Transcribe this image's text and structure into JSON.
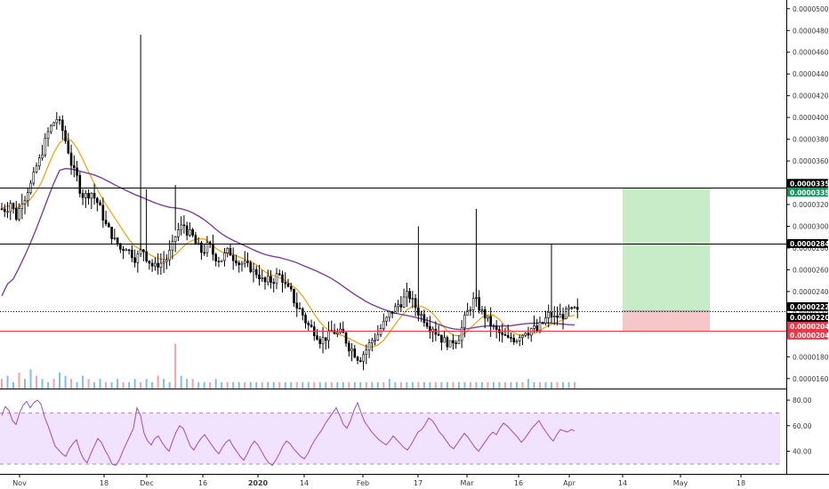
{
  "chart_data": {
    "type": "candlestick",
    "price_axis": {
      "ylim": [
        1.5e-05,
        5.08e-05
      ],
      "ticks": [
        "0.00001600",
        "0.00001800",
        "0.00002000",
        "0.00002200",
        "0.00002400",
        "0.00002600",
        "0.00002800",
        "0.00003000",
        "0.00003200",
        "0.00003400",
        "0.00003600",
        "0.00003800",
        "0.00004000",
        "0.00004200",
        "0.00004400",
        "0.00004600",
        "0.00004800",
        "0.00005000"
      ]
    },
    "time_axis": {
      "labels": [
        "Nov",
        "18",
        "Dec",
        "16",
        "2020",
        "14",
        "Feb",
        "17",
        "Mar",
        "16",
        "Apr",
        "14",
        "May",
        "18"
      ],
      "bold": [
        "2020"
      ]
    },
    "horizontal_levels": [
      {
        "value": 3.353e-05,
        "label": "0.00003353",
        "color": "#000000"
      },
      {
        "value": 2.841e-05,
        "label": "0.00002841",
        "color": "#000000"
      },
      {
        "value": 2.22e-05,
        "label": "0.00002220",
        "color": "#000000"
      },
      {
        "value": 2.04e-05,
        "label": "0.00002040",
        "color": "#f23645"
      }
    ],
    "price_tags": [
      {
        "label": "0.00003353",
        "value": 3.353e-05,
        "bg": "#000000"
      },
      {
        "label": "0.00003353",
        "value": 3.353e-05,
        "bg": "#089a5a"
      },
      {
        "label": "0.00002841",
        "value": 2.841e-05,
        "bg": "#000000"
      },
      {
        "label": "0.00002220",
        "value": 2.22e-05,
        "bg": "#000000"
      },
      {
        "label": "0.00002203",
        "value": 2.203e-05,
        "bg": "#000000"
      },
      {
        "label": "02:04:35",
        "value": 2.11e-05,
        "bg": "#000000"
      },
      {
        "label": "0.00002040",
        "value": 2.04e-05,
        "bg": "#f23645"
      },
      {
        "label": "0.00002040",
        "value": 2.04e-05,
        "bg": "#f23645"
      }
    ],
    "position_tool": {
      "entry": 2.22e-05,
      "target": 3.353e-05,
      "stop": 2.04e-05,
      "profit_color": "#c8ecc8",
      "loss_color": "#f7c6c9"
    },
    "close_series": [
      3.16e-05,
      3.22e-05,
      3.09e-05,
      3.25e-05,
      3.34e-05,
      3.45e-05,
      3.6e-05,
      3.77e-05,
      3.91e-05,
      3.99e-05,
      3.88e-05,
      3.7e-05,
      3.49e-05,
      3.35e-05,
      3.28e-05,
      3.31e-05,
      3.22e-05,
      3.09e-05,
      2.96e-05,
      2.86e-05,
      2.79e-05,
      2.82e-05,
      2.75e-05,
      2.72e-05,
      2.78e-05,
      2.68e-05,
      2.62e-05,
      2.66e-05,
      2.7e-05,
      2.81e-05,
      2.96e-05,
      3.01e-05,
      2.92e-05,
      2.83e-05,
      2.77e-05,
      2.81e-05,
      2.75e-05,
      2.7e-05,
      2.73e-05,
      2.76e-05,
      2.71e-05,
      2.66e-05,
      2.62e-05,
      2.58e-05,
      2.55e-05,
      2.48e-05,
      2.5e-05,
      2.54e-05,
      2.52e-05,
      2.41e-05,
      2.32e-05,
      2.23e-05,
      2.13e-05,
      2.06e-05,
      2.01e-05,
      1.96e-05,
      1.99e-05,
      2.03e-05,
      2.01e-05,
      1.95e-05,
      1.87e-05,
      1.8e-05,
      1.83e-05,
      1.91e-05,
      1.98e-05,
      2.06e-05,
      2.14e-05,
      2.22e-05,
      2.28e-05,
      2.33e-05,
      2.36e-05,
      2.26e-05,
      2.18e-05,
      2.12e-05,
      2.08e-05,
      2.01e-05,
      1.94e-05,
      1.9e-05,
      1.96e-05,
      2.06e-05,
      2.21e-05,
      2.31e-05,
      2.26e-05,
      2.18e-05,
      2.1e-05,
      2.03e-05,
      1.98e-05,
      1.95e-05,
      1.97e-05,
      2.01e-05,
      2.05e-05,
      2.06e-05,
      2.04e-05,
      2.11e-05,
      2.18e-05,
      2.15e-05,
      2.17e-05,
      2.19e-05,
      2.21e-05,
      2.2e-05
    ],
    "spikes": [
      {
        "index": 38,
        "high": 4.76e-05
      },
      {
        "index": 40,
        "high": 3.34e-05
      },
      {
        "index": 48,
        "high": 3.38e-05
      },
      {
        "index": 117,
        "high": 3e-05
      },
      {
        "index": 132,
        "high": 3.16e-05
      },
      {
        "index": 154,
        "high": 2.84e-05
      }
    ],
    "volume_series": [
      3,
      4,
      2,
      5,
      3,
      6,
      4,
      3,
      2,
      3,
      5,
      4,
      3,
      2,
      4,
      3,
      2,
      3,
      2,
      2,
      3,
      2,
      2,
      3,
      2,
      3,
      2,
      4,
      3,
      2,
      14,
      4,
      3,
      3,
      2,
      2,
      2,
      3,
      2,
      2,
      2,
      2,
      2,
      2,
      2,
      2,
      2,
      2,
      2,
      2,
      2,
      2,
      2,
      2,
      2,
      2,
      2,
      2,
      2,
      2,
      2,
      2,
      2,
      2,
      2,
      2,
      2,
      3,
      2,
      2,
      2,
      2,
      2,
      2,
      2,
      2,
      2,
      2,
      2,
      2,
      2,
      2,
      2,
      2,
      2,
      2,
      2,
      2,
      2,
      2,
      2,
      3,
      2,
      2,
      2,
      2,
      2,
      2,
      2,
      2
    ],
    "rsi": {
      "ticks": [
        "80.00",
        "60.00",
        "40.00"
      ],
      "ylim": [
        23,
        87
      ],
      "bands": [
        30,
        70
      ],
      "series": [
        68,
        75,
        72,
        64,
        61,
        70,
        76,
        79,
        74,
        78,
        80,
        77,
        67,
        60,
        52,
        44,
        41,
        38,
        36,
        42,
        46,
        49,
        40,
        34,
        31,
        38,
        44,
        50,
        47,
        41,
        36,
        30,
        29,
        33,
        40,
        46,
        52,
        58,
        74,
        68,
        54,
        48,
        45,
        50,
        52,
        47,
        43,
        40,
        48,
        55,
        60,
        58,
        51,
        44,
        41,
        46,
        50,
        53,
        49,
        45,
        41,
        38,
        43,
        47,
        49,
        44,
        40,
        36,
        33,
        38,
        44,
        48,
        45,
        40,
        35,
        31,
        29,
        33,
        38,
        44,
        48,
        46,
        42,
        39,
        36,
        34,
        38,
        44,
        49,
        53,
        57,
        62,
        66,
        70,
        74,
        68,
        61,
        58,
        64,
        72,
        78,
        70,
        63,
        59,
        55,
        52,
        49,
        47,
        45,
        48,
        52,
        49,
        46,
        43,
        41,
        45,
        50,
        55,
        57,
        61,
        66,
        64,
        60,
        55,
        52,
        48,
        44,
        42,
        46,
        50,
        54,
        51,
        47,
        43,
        40,
        44,
        48,
        52,
        55,
        53,
        58,
        62,
        60,
        57,
        54,
        51,
        47,
        50,
        54,
        58,
        61,
        64,
        59,
        55,
        51,
        48,
        53,
        57,
        56,
        55,
        57,
        56
      ]
    },
    "colors": {
      "candle": "#000000",
      "ma_fast": "#f5a000",
      "ma_slow": "#7b3fa8",
      "rsi_line": "#9b4dca",
      "rsi_band": "#f1e2fd",
      "volume_up": "#7fbfe6",
      "volume_down": "#f0a3a8"
    }
  }
}
